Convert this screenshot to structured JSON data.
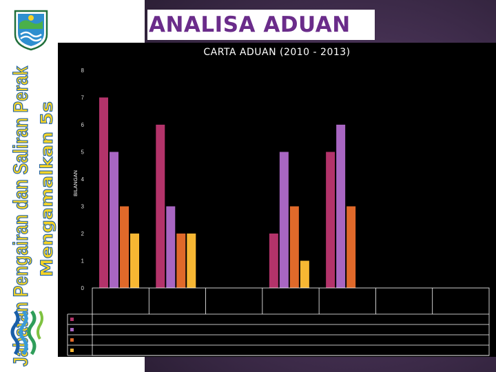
{
  "header": {
    "title": "ANALISA ADUAN",
    "side_text_1": "Jabatan Pengairan dan Saliran Perak",
    "side_text_2": "Mengamalkan 5s"
  },
  "colors": {
    "title_text": "#6a2c8a",
    "series": [
      "#b3336a",
      "#a866c2",
      "#e0692a",
      "#f7b733"
    ]
  },
  "chart_data": {
    "type": "bar",
    "title": "CARTA ADUAN  (2010 - 2013)",
    "xlabel": "",
    "ylabel": "BILANGAN",
    "ylim": [
      0,
      8
    ],
    "yticks": [
      0,
      1,
      2,
      3,
      4,
      5,
      6,
      7,
      8
    ],
    "categories": [
      "",
      "",
      "",
      "",
      "",
      "",
      ""
    ],
    "series": [
      {
        "values": [
          7,
          6,
          0,
          2,
          5,
          0,
          0
        ]
      },
      {
        "values": [
          5,
          3,
          0,
          5,
          6,
          0,
          0
        ]
      },
      {
        "values": [
          3,
          2,
          0,
          3,
          3,
          0,
          0
        ]
      },
      {
        "values": [
          2,
          2,
          0,
          1,
          0,
          0,
          0
        ]
      }
    ],
    "grid": false,
    "legend": "bottom-table"
  }
}
